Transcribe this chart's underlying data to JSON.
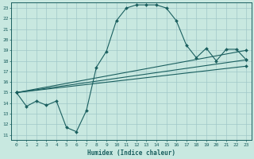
{
  "xlabel": "Humidex (Indice chaleur)",
  "bg_color": "#c8e8e0",
  "grid_color": "#a0c8c8",
  "line_color": "#1a5f5f",
  "xlim": [
    -0.5,
    23.5
  ],
  "ylim": [
    10.5,
    23.5
  ],
  "xticks": [
    0,
    1,
    2,
    3,
    4,
    5,
    6,
    7,
    8,
    9,
    10,
    11,
    12,
    13,
    14,
    15,
    16,
    17,
    18,
    19,
    20,
    21,
    22,
    23
  ],
  "yticks": [
    11,
    12,
    13,
    14,
    15,
    16,
    17,
    18,
    19,
    20,
    21,
    22,
    23
  ],
  "curve_x": [
    0,
    1,
    2,
    3,
    4,
    5,
    6,
    7,
    8,
    9,
    10,
    11,
    12,
    13,
    14,
    15,
    16,
    17,
    18,
    19,
    20,
    21,
    22,
    23
  ],
  "curve_y": [
    15.0,
    13.7,
    14.2,
    13.8,
    14.2,
    11.7,
    11.3,
    13.3,
    17.4,
    18.9,
    21.8,
    23.0,
    23.3,
    23.3,
    23.3,
    23.0,
    21.8,
    19.5,
    18.3,
    19.2,
    18.0,
    19.1,
    19.1,
    18.1
  ],
  "line1_x": [
    0,
    23
  ],
  "line1_y": [
    15.0,
    19.0
  ],
  "line2_x": [
    0,
    23
  ],
  "line2_y": [
    15.0,
    18.1
  ],
  "line3_x": [
    0,
    23
  ],
  "line3_y": [
    15.0,
    17.5
  ]
}
